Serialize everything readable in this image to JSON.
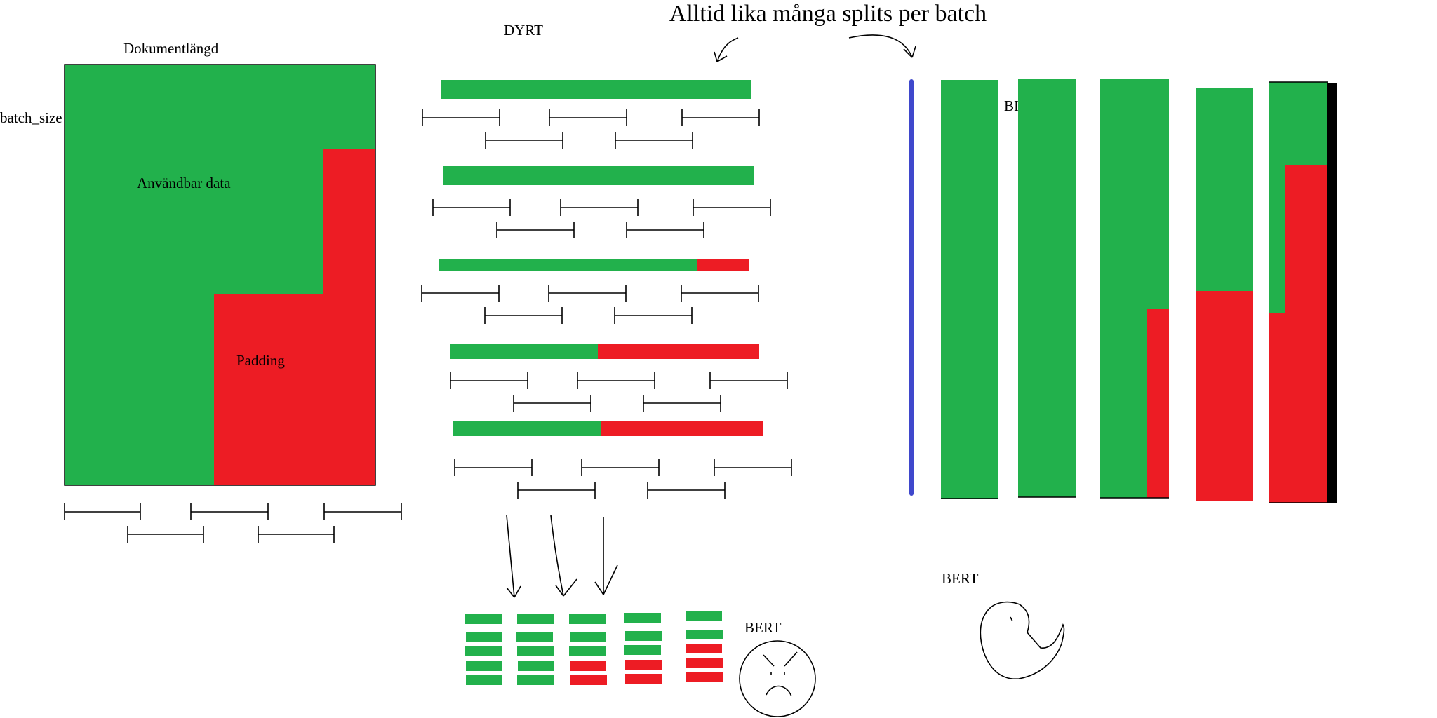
{
  "title": "Alltid lika många splits per batch",
  "labels": {
    "doc_length": "Dokumentlängd",
    "batch_size": "batch_size",
    "usable_data": "Användbar data",
    "padding": "Padding",
    "expensive": "DYRT",
    "cheap": "BILLIGT",
    "bert_sad": "BERT",
    "bert_happy": "BERT"
  },
  "colors": {
    "data": "#22b14c",
    "padding": "#ed1c24",
    "divider": "#3f48cc",
    "border": "#000000"
  },
  "expensive_rows_padding_fraction": [
    0,
    0,
    0.17,
    0.52,
    0.52
  ],
  "cheap_columns_padding_fraction": [
    0,
    0,
    0.45,
    0.51,
    0.79
  ],
  "mini_grid_padding_count": [
    0,
    0,
    2,
    2,
    3
  ]
}
